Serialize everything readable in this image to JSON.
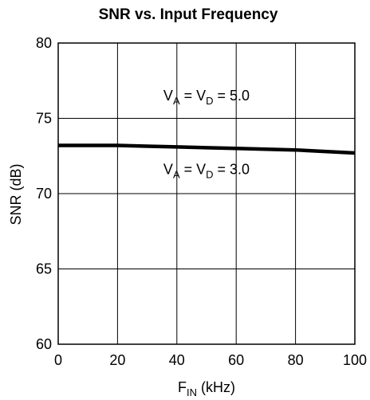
{
  "chart_data": {
    "type": "line",
    "title": "SNR vs. Input Frequency",
    "xlabel": {
      "main": "F",
      "sub": "IN",
      "unit": " (kHz)"
    },
    "ylabel": "SNR (dB)",
    "xlim": [
      0,
      100
    ],
    "ylim": [
      60,
      80
    ],
    "x_ticks": [
      "0",
      "20",
      "40",
      "60",
      "80",
      "100"
    ],
    "y_ticks": [
      "60",
      "65",
      "70",
      "75",
      "80"
    ],
    "grid": true,
    "series": [
      {
        "x": [
          0,
          10,
          20,
          30,
          40,
          50,
          60,
          70,
          80,
          90,
          100
        ],
        "y": [
          73.2,
          73.2,
          73.2,
          73.15,
          73.1,
          73.05,
          73.0,
          72.95,
          72.9,
          72.8,
          72.7
        ],
        "color": "#000000"
      }
    ],
    "annotations": [
      {
        "parts": [
          "V",
          "A",
          " = V",
          "D",
          " = 5.0"
        ],
        "x": 50,
        "y": 76.2
      },
      {
        "parts": [
          "V",
          "A",
          " = V",
          "D",
          " = 3.0"
        ],
        "x": 50,
        "y": 71.3
      }
    ]
  }
}
